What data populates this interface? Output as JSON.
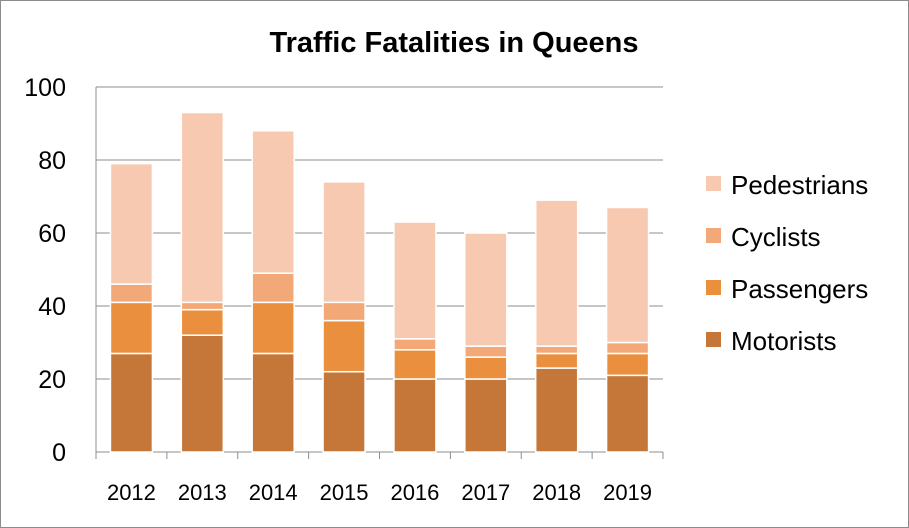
{
  "chart_data": {
    "type": "bar",
    "stacked": true,
    "title": "Traffic Fatalities in Queens",
    "xlabel": "",
    "ylabel": "",
    "ylim": [
      0,
      100
    ],
    "yticks": [
      "0",
      "20",
      "40",
      "60",
      "80",
      "100"
    ],
    "categories": [
      "2012",
      "2013",
      "2014",
      "2015",
      "2016",
      "2017",
      "2018",
      "2019"
    ],
    "series": [
      {
        "name": "Motorists",
        "color": "#c5773a",
        "values": [
          27,
          32,
          27,
          22,
          20,
          20,
          23,
          21
        ]
      },
      {
        "name": "Passengers",
        "color": "#ea8f3d",
        "values": [
          14,
          7,
          14,
          14,
          8,
          6,
          4,
          6
        ]
      },
      {
        "name": "Cyclists",
        "color": "#f2a877",
        "values": [
          5,
          2,
          8,
          5,
          3,
          3,
          2,
          3
        ]
      },
      {
        "name": "Pedestrians",
        "color": "#f8c9b1",
        "values": [
          33,
          52,
          39,
          33,
          32,
          31,
          40,
          37
        ]
      }
    ],
    "legend_order": [
      "Pedestrians",
      "Cyclists",
      "Passengers",
      "Motorists"
    ],
    "legend_position": "right",
    "grid": true
  }
}
